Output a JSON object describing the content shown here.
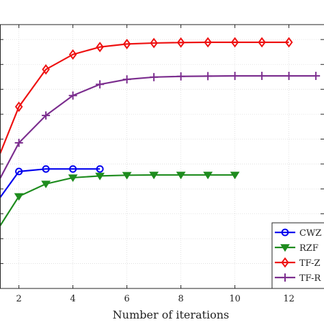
{
  "chart_data": {
    "type": "line",
    "title": "",
    "xlabel": "Number of iterations",
    "ylabel": "",
    "xlim": [
      1.3,
      13.3
    ],
    "ylim": [
      0,
      10.6
    ],
    "xticks": [
      2,
      4,
      6,
      8,
      10,
      12
    ],
    "xtick_labels": [
      "2",
      "4",
      "6",
      "8",
      "10",
      "12"
    ],
    "ytick_positions": [
      1,
      2,
      3,
      4,
      5,
      6,
      7,
      8,
      9,
      10
    ],
    "grid": true,
    "legend_position": "bottom-right",
    "series": [
      {
        "name": "CWZ",
        "color": "#0000ee",
        "marker": "circle",
        "x": [
          1,
          2,
          3,
          4,
          5
        ],
        "y": [
          3.2,
          4.7,
          4.8,
          4.8,
          4.8
        ]
      },
      {
        "name": "RZF",
        "color": "#1e8c1e",
        "marker": "triangle-down",
        "x": [
          1,
          2,
          3,
          4,
          5,
          6,
          7,
          8,
          9,
          10
        ],
        "y": [
          2.0,
          3.7,
          4.2,
          4.45,
          4.52,
          4.55,
          4.56,
          4.56,
          4.56,
          4.56
        ]
      },
      {
        "name": "TF-Z",
        "color": "#ee1111",
        "marker": "diamond",
        "x": [
          1,
          2,
          3,
          4,
          5,
          6,
          7,
          8,
          9,
          10,
          11,
          12
        ],
        "y": [
          4.6,
          7.3,
          8.8,
          9.4,
          9.7,
          9.82,
          9.86,
          9.88,
          9.89,
          9.89,
          9.89,
          9.89
        ]
      },
      {
        "name": "TF-R",
        "color": "#7b2d8e",
        "marker": "plus",
        "x": [
          1,
          2,
          3,
          4,
          5,
          6,
          7,
          8,
          9,
          10,
          11,
          12,
          13
        ],
        "y": [
          3.8,
          5.85,
          6.95,
          7.75,
          8.2,
          8.4,
          8.49,
          8.52,
          8.53,
          8.54,
          8.54,
          8.54,
          8.54
        ]
      }
    ]
  }
}
